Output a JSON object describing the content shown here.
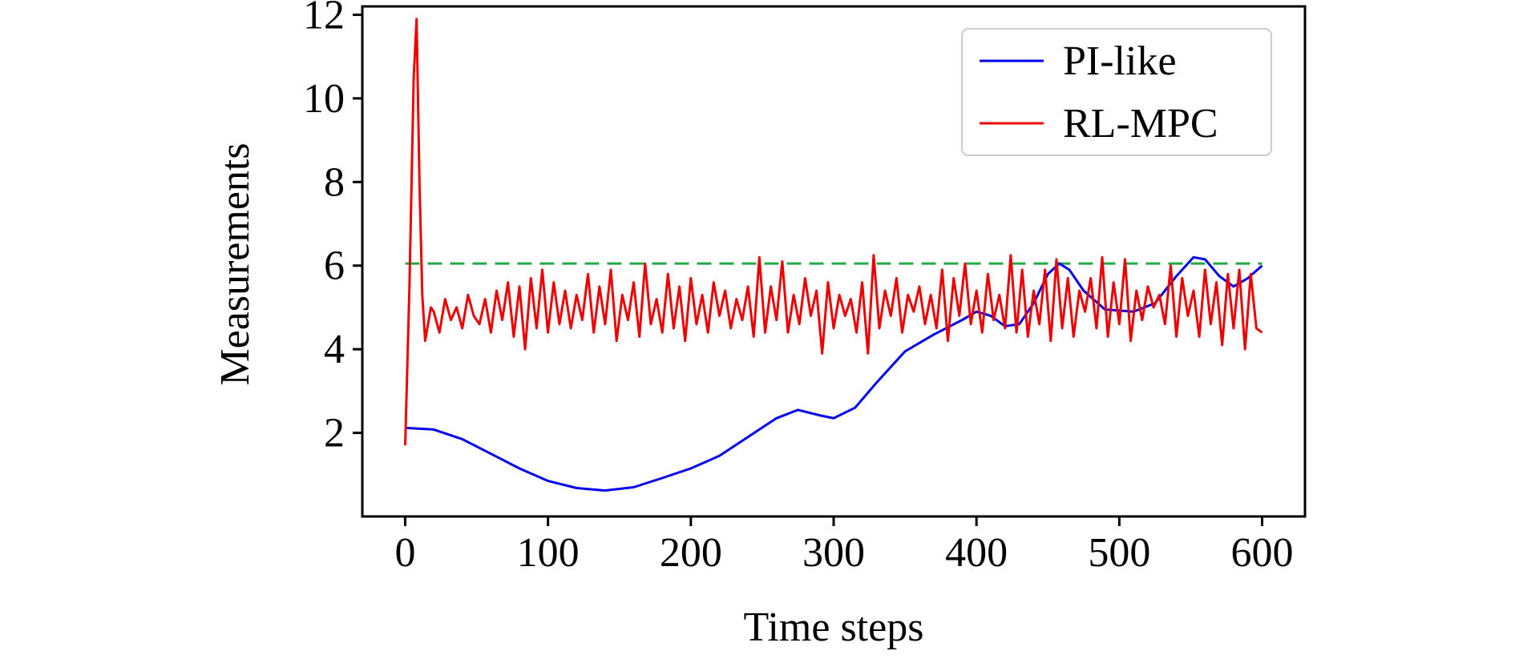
{
  "chart_data": {
    "type": "line",
    "title": "",
    "xlabel": "Time steps",
    "ylabel": "Measurements",
    "xlim": [
      -30,
      630
    ],
    "ylim": [
      0,
      12.2
    ],
    "xticks": [
      0,
      100,
      200,
      300,
      400,
      500,
      600
    ],
    "yticks": [
      2,
      4,
      6,
      8,
      10,
      12
    ],
    "grid": false,
    "legend_position": "top-right",
    "reference_line": {
      "y": 6.05,
      "color": "#22aa44",
      "style": "dashed"
    },
    "series": [
      {
        "name": "PI-like",
        "color": "#0000ee",
        "x": [
          0,
          20,
          40,
          60,
          80,
          100,
          120,
          140,
          160,
          180,
          200,
          220,
          240,
          260,
          275,
          290,
          300,
          315,
          330,
          350,
          370,
          390,
          400,
          410,
          420,
          430,
          440,
          450,
          458,
          465,
          475,
          490,
          510,
          525,
          540,
          552,
          560,
          570,
          580,
          590,
          600
        ],
        "y": [
          2.12,
          2.08,
          1.85,
          1.5,
          1.15,
          0.85,
          0.68,
          0.62,
          0.7,
          0.92,
          1.15,
          1.45,
          1.9,
          2.35,
          2.55,
          2.42,
          2.35,
          2.6,
          3.2,
          3.95,
          4.35,
          4.7,
          4.9,
          4.8,
          4.55,
          4.6,
          5.1,
          5.8,
          6.05,
          5.9,
          5.4,
          4.95,
          4.9,
          5.1,
          5.75,
          6.2,
          6.15,
          5.75,
          5.5,
          5.7,
          6.0
        ]
      },
      {
        "name": "RL-MPC",
        "color": "#ee0000",
        "x": [
          0,
          3,
          6,
          8,
          10,
          12,
          14,
          16,
          18,
          20,
          24,
          28,
          32,
          36,
          40,
          44,
          48,
          52,
          56,
          60,
          64,
          68,
          72,
          76,
          80,
          84,
          88,
          92,
          96,
          100,
          104,
          108,
          112,
          116,
          120,
          124,
          128,
          132,
          136,
          140,
          144,
          148,
          152,
          156,
          160,
          164,
          168,
          172,
          176,
          180,
          184,
          188,
          192,
          196,
          200,
          204,
          208,
          212,
          216,
          220,
          224,
          228,
          232,
          236,
          240,
          244,
          248,
          252,
          256,
          260,
          264,
          268,
          272,
          276,
          280,
          284,
          288,
          292,
          296,
          300,
          304,
          308,
          312,
          316,
          320,
          324,
          328,
          332,
          336,
          340,
          344,
          348,
          352,
          356,
          360,
          364,
          368,
          372,
          376,
          380,
          384,
          388,
          392,
          396,
          400,
          404,
          408,
          412,
          416,
          420,
          424,
          428,
          432,
          436,
          440,
          444,
          448,
          452,
          456,
          460,
          464,
          468,
          472,
          476,
          480,
          484,
          488,
          492,
          496,
          500,
          504,
          508,
          512,
          516,
          520,
          524,
          528,
          532,
          536,
          540,
          544,
          548,
          552,
          556,
          560,
          564,
          568,
          572,
          576,
          580,
          584,
          588,
          592,
          596,
          600
        ],
        "y": [
          1.7,
          5.5,
          10.5,
          11.9,
          8.0,
          5.3,
          4.2,
          4.6,
          5.0,
          4.9,
          4.4,
          5.2,
          4.7,
          5.0,
          4.5,
          5.3,
          4.8,
          4.6,
          5.2,
          4.4,
          5.4,
          4.7,
          5.6,
          4.3,
          5.5,
          4.0,
          5.7,
          4.5,
          5.9,
          4.4,
          5.6,
          4.6,
          5.4,
          4.5,
          5.3,
          4.7,
          5.8,
          4.4,
          5.5,
          4.6,
          5.9,
          4.2,
          5.3,
          4.7,
          5.6,
          4.3,
          6.05,
          4.6,
          5.2,
          4.4,
          5.8,
          4.5,
          5.5,
          4.2,
          5.7,
          4.6,
          5.3,
          4.4,
          5.6,
          4.8,
          5.4,
          4.5,
          5.2,
          4.7,
          5.5,
          4.3,
          6.2,
          4.4,
          5.5,
          4.7,
          6.1,
          4.4,
          5.3,
          4.6,
          5.7,
          4.8,
          5.4,
          3.9,
          5.6,
          4.5,
          5.3,
          4.8,
          5.2,
          4.4,
          5.6,
          3.9,
          6.25,
          4.5,
          5.4,
          4.8,
          5.7,
          4.4,
          5.3,
          4.9,
          5.5,
          4.6,
          5.3,
          4.5,
          5.9,
          4.2,
          5.7,
          4.8,
          6.05,
          4.6,
          5.4,
          4.4,
          5.8,
          4.7,
          5.3,
          4.5,
          6.25,
          4.4,
          5.9,
          4.3,
          5.4,
          4.6,
          5.9,
          4.2,
          6.15,
          4.5,
          5.7,
          4.3,
          5.4,
          4.9,
          5.7,
          4.5,
          6.2,
          4.3,
          5.6,
          4.6,
          6.15,
          4.2,
          5.4,
          4.7,
          5.5,
          5.0,
          5.3,
          4.6,
          6.0,
          4.3,
          5.7,
          4.8,
          5.4,
          4.3,
          5.9,
          4.6,
          5.6,
          4.1,
          5.8,
          4.5,
          5.9,
          4.0,
          5.8,
          4.5,
          4.4
        ]
      }
    ]
  }
}
